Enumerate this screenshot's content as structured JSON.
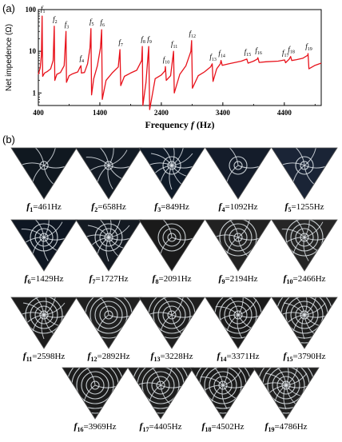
{
  "panel_a_label": "(a)",
  "panel_b_label": "(b)",
  "chart_data": {
    "type": "line",
    "title": "",
    "xlabel": "Frequency",
    "xlabel_symbol": "f",
    "xlabel_unit": "(Hz)",
    "ylabel": "Net impedence (Ω)",
    "xlim": [
      400,
      5000
    ],
    "ylim": [
      0.5,
      100
    ],
    "yscale": "log",
    "xticks": [
      400,
      1400,
      2400,
      3400,
      4400
    ],
    "yticks": [
      1,
      10,
      100
    ],
    "ytick_labels": [
      "1",
      "10",
      "100"
    ],
    "grid": false,
    "color": "#e8121b",
    "series": [
      {
        "x": [
          400,
          430,
          450,
          461,
          470,
          500,
          550,
          600,
          640,
          658,
          668,
          700,
          760,
          820,
          849,
          858,
          900,
          960,
          1040,
          1080,
          1092,
          1100,
          1150,
          1200,
          1240,
          1255,
          1265,
          1300,
          1360,
          1410,
          1429,
          1440,
          1500,
          1600,
          1700,
          1727,
          1740,
          1800,
          1900,
          2000,
          2080,
          2091,
          2100,
          2150,
          2194,
          2210,
          2300,
          2400,
          2460,
          2466,
          2480,
          2550,
          2598,
          2610,
          2700,
          2800,
          2880,
          2892,
          2905,
          3000,
          3100,
          3200,
          3228,
          3240,
          3300,
          3360,
          3371,
          3390,
          3500,
          3700,
          3790,
          3810,
          3900,
          3960,
          3969,
          3990,
          4100,
          4300,
          4405,
          4420,
          4480,
          4502,
          4520,
          4600,
          4700,
          4780,
          4786,
          4800,
          4900,
          5000
        ],
        "y": [
          2.8,
          4.0,
          8.0,
          70,
          2.5,
          3.0,
          3.3,
          3.8,
          6.0,
          40,
          2.0,
          2.8,
          3.1,
          4.5,
          30,
          1.8,
          2.6,
          2.9,
          3.2,
          4.2,
          4.5,
          3.0,
          3.1,
          5.0,
          12,
          35,
          0.9,
          2.2,
          4.5,
          12,
          33,
          0.7,
          2.0,
          3.0,
          4.2,
          11,
          1.5,
          2.5,
          3.0,
          3.5,
          6.0,
          13,
          0.5,
          1.8,
          13,
          0.4,
          2.2,
          2.7,
          3.4,
          4.3,
          2.0,
          2.6,
          10,
          1.0,
          2.8,
          4.5,
          10,
          18,
          1.3,
          2.6,
          3.2,
          4.2,
          5.0,
          1.9,
          3.8,
          5.0,
          6.0,
          4.6,
          5.0,
          5.8,
          6.5,
          5.2,
          5.8,
          6.5,
          7.0,
          5.4,
          5.6,
          5.8,
          6.2,
          5.3,
          6.5,
          7.5,
          6.0,
          6.3,
          6.8,
          8.0,
          8.8,
          3.8,
          4.6,
          5.2
        ]
      }
    ],
    "annotations": [
      {
        "label": "1",
        "x": 461,
        "y": 70
      },
      {
        "label": "2",
        "x": 658,
        "y": 40
      },
      {
        "label": "3",
        "x": 849,
        "y": 30
      },
      {
        "label": "4",
        "x": 1092,
        "y": 4.5
      },
      {
        "label": "5",
        "x": 1255,
        "y": 35
      },
      {
        "label": "6",
        "x": 1429,
        "y": 33
      },
      {
        "label": "7",
        "x": 1727,
        "y": 11
      },
      {
        "label": "8",
        "x": 2091,
        "y": 13
      },
      {
        "label": "9",
        "x": 2194,
        "y": 13
      },
      {
        "label": "10",
        "x": 2466,
        "y": 4.3
      },
      {
        "label": "11",
        "x": 2598,
        "y": 10
      },
      {
        "label": "12",
        "x": 2892,
        "y": 18
      },
      {
        "label": "13",
        "x": 3228,
        "y": 5.0
      },
      {
        "label": "14",
        "x": 3371,
        "y": 6.0
      },
      {
        "label": "15",
        "x": 3790,
        "y": 6.5
      },
      {
        "label": "16",
        "x": 3969,
        "y": 7.0
      },
      {
        "label": "17",
        "x": 4405,
        "y": 6.2
      },
      {
        "label": "18",
        "x": 4502,
        "y": 7.5
      },
      {
        "label": "19",
        "x": 4786,
        "y": 8.8
      }
    ]
  },
  "modes": [
    {
      "sub": "1",
      "value": "=461Hz"
    },
    {
      "sub": "2",
      "value": "=658Hz"
    },
    {
      "sub": "3",
      "value": "=849Hz"
    },
    {
      "sub": "4",
      "value": "=1092Hz"
    },
    {
      "sub": "5",
      "value": "=1255Hz"
    },
    {
      "sub": "6",
      "value": "=1429Hz"
    },
    {
      "sub": "7",
      "value": "=1727Hz"
    },
    {
      "sub": "8",
      "value": "=2091Hz"
    },
    {
      "sub": "9",
      "value": "=2194Hz"
    },
    {
      "sub": "10",
      "value": "=2466Hz"
    },
    {
      "sub": "11",
      "value": "=2598Hz"
    },
    {
      "sub": "12",
      "value": "=2892Hz"
    },
    {
      "sub": "13",
      "value": "=3228Hz"
    },
    {
      "sub": "14",
      "value": "=3371Hz"
    },
    {
      "sub": "15",
      "value": "=3790Hz"
    },
    {
      "sub": "16",
      "value": "=3969Hz"
    },
    {
      "sub": "17",
      "value": "=4405Hz"
    },
    {
      "sub": "18",
      "value": "=4502Hz"
    },
    {
      "sub": "19",
      "value": "=4786Hz"
    }
  ],
  "mode_symbol": "f"
}
